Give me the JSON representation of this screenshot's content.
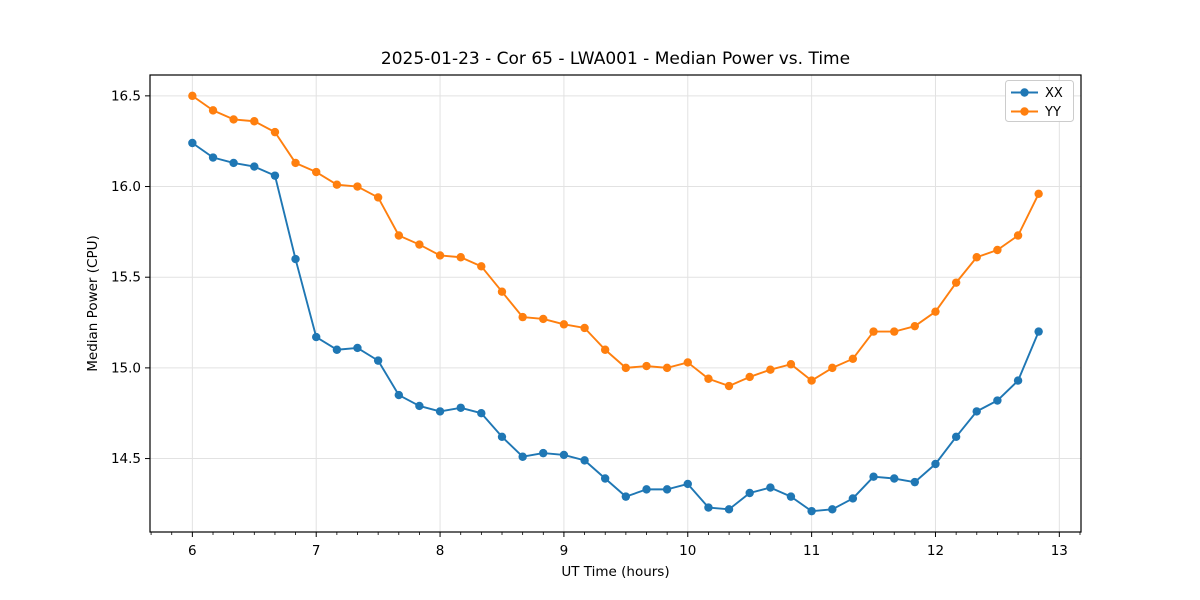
{
  "figure": {
    "background": "#ffffff"
  },
  "chart_data": {
    "type": "line",
    "title": "2025-01-23 - Cor 65 - LWA001 - Median Power vs. Time",
    "xlabel": "UT Time (hours)",
    "ylabel": "Median Power (CPU)",
    "xlim": [
      5.658,
      13.175
    ],
    "ylim": [
      14.095,
      16.615
    ],
    "xticks": [
      6,
      7,
      8,
      9,
      10,
      11,
      12,
      13
    ],
    "xtick_labels": [
      "6",
      "7",
      "8",
      "9",
      "10",
      "11",
      "12",
      "13"
    ],
    "yticks": [
      14.5,
      15.0,
      15.5,
      16.0,
      16.5
    ],
    "ytick_labels": [
      "14.5",
      "15.0",
      "15.5",
      "16.0",
      "16.5"
    ],
    "minor_xtick_interval": 0.16667,
    "grid": true,
    "grid_color": "#e2e2e2",
    "spine_color": "#000000",
    "legend": {
      "position": "upper right",
      "entries": [
        {
          "label": "XX",
          "color": "#1f77b4"
        },
        {
          "label": "YY",
          "color": "#ff7f0e"
        }
      ]
    },
    "x": [
      6.0,
      6.167,
      6.333,
      6.5,
      6.667,
      6.833,
      7.0,
      7.167,
      7.333,
      7.5,
      7.667,
      7.833,
      8.0,
      8.167,
      8.333,
      8.5,
      8.667,
      8.833,
      9.0,
      9.167,
      9.333,
      9.5,
      9.667,
      9.833,
      10.0,
      10.167,
      10.333,
      10.5,
      10.667,
      10.833,
      11.0,
      11.167,
      11.333,
      11.5,
      11.667,
      11.833,
      12.0,
      12.167,
      12.333,
      12.5,
      12.667,
      12.833
    ],
    "series": [
      {
        "name": "XX",
        "color": "#1f77b4",
        "values": [
          16.24,
          16.16,
          16.13,
          16.11,
          16.06,
          15.6,
          15.17,
          15.1,
          15.11,
          15.04,
          14.85,
          14.79,
          14.76,
          14.78,
          14.75,
          14.62,
          14.51,
          14.53,
          14.52,
          14.49,
          14.39,
          14.29,
          14.33,
          14.33,
          14.36,
          14.23,
          14.22,
          14.31,
          14.34,
          14.29,
          14.21,
          14.22,
          14.28,
          14.4,
          14.39,
          14.37,
          14.47,
          14.62,
          14.76,
          14.82,
          14.93,
          15.2
        ]
      },
      {
        "name": "YY",
        "color": "#ff7f0e",
        "values": [
          16.5,
          16.42,
          16.37,
          16.36,
          16.3,
          16.13,
          16.08,
          16.01,
          16.0,
          15.94,
          15.73,
          15.68,
          15.62,
          15.61,
          15.56,
          15.42,
          15.28,
          15.27,
          15.24,
          15.22,
          15.1,
          15.0,
          15.01,
          15.0,
          15.03,
          14.94,
          14.9,
          14.95,
          14.99,
          15.02,
          14.93,
          15.0,
          15.05,
          15.2,
          15.2,
          15.23,
          15.31,
          15.47,
          15.61,
          15.65,
          15.73,
          15.96
        ]
      }
    ]
  }
}
